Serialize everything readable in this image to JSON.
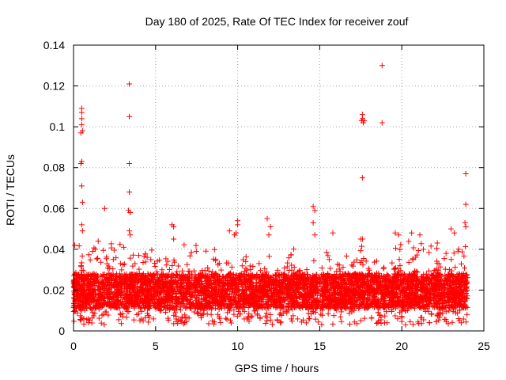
{
  "chart_data": {
    "type": "scatter",
    "title": "Day 180 of 2025, Rate Of TEC Index for receiver zouf",
    "xlabel": "GPS time / hours",
    "ylabel": "ROTI / TECUs",
    "xlim": [
      0,
      25
    ],
    "ylim": [
      0,
      0.14
    ],
    "xticks": [
      0,
      5,
      10,
      15,
      20,
      25
    ],
    "xtick_labels": [
      "0",
      "5",
      "10",
      "15",
      "20",
      "25"
    ],
    "yticks": [
      0,
      0.02,
      0.04,
      0.06,
      0.08,
      0.1,
      0.12,
      0.14
    ],
    "ytick_labels": [
      "0",
      "0.02",
      "0.04",
      "0.06",
      "0.08",
      "0.1",
      "0.12",
      "0.14"
    ],
    "grid": true,
    "marker": "+",
    "color": "#ff0000",
    "bulk_band": {
      "x_range": [
        0,
        24
      ],
      "typical_y": [
        0.008,
        0.028
      ],
      "note": "dense cloud of thousands of ROTI samples across 0–24 h"
    },
    "series": [
      {
        "name": "ROTI",
        "points": [
          [
            0.5,
            0.109
          ],
          [
            0.5,
            0.107
          ],
          [
            0.5,
            0.104
          ],
          [
            0.5,
            0.101
          ],
          [
            0.45,
            0.097
          ],
          [
            0.55,
            0.098
          ],
          [
            0.5,
            0.083
          ],
          [
            0.45,
            0.082
          ],
          [
            0.5,
            0.071
          ],
          [
            0.55,
            0.063
          ],
          [
            0.5,
            0.052
          ],
          [
            0.55,
            0.049
          ],
          [
            1.9,
            0.06
          ],
          [
            3.4,
            0.121
          ],
          [
            3.4,
            0.105
          ],
          [
            3.4,
            0.082
          ],
          [
            3.4,
            0.068
          ],
          [
            3.35,
            0.059
          ],
          [
            3.45,
            0.058
          ],
          [
            3.4,
            0.049
          ],
          [
            3.45,
            0.047
          ],
          [
            6.0,
            0.052
          ],
          [
            6.1,
            0.051
          ],
          [
            6.1,
            0.045
          ],
          [
            9.5,
            0.049
          ],
          [
            9.8,
            0.047
          ],
          [
            10.0,
            0.054
          ],
          [
            10.0,
            0.052
          ],
          [
            9.9,
            0.048
          ],
          [
            11.8,
            0.055
          ],
          [
            12.0,
            0.051
          ],
          [
            11.9,
            0.047
          ],
          [
            14.6,
            0.061
          ],
          [
            14.7,
            0.059
          ],
          [
            14.6,
            0.053
          ],
          [
            14.7,
            0.047
          ],
          [
            15.8,
            0.048
          ],
          [
            17.6,
            0.106
          ],
          [
            17.6,
            0.104
          ],
          [
            17.65,
            0.102
          ],
          [
            17.7,
            0.103
          ],
          [
            17.55,
            0.103
          ],
          [
            17.6,
            0.075
          ],
          [
            17.5,
            0.045
          ],
          [
            17.6,
            0.045
          ],
          [
            18.8,
            0.13
          ],
          [
            18.8,
            0.102
          ],
          [
            19.6,
            0.048
          ],
          [
            19.8,
            0.047
          ],
          [
            20.6,
            0.048
          ],
          [
            21.1,
            0.047
          ],
          [
            23.0,
            0.05
          ],
          [
            23.2,
            0.048
          ],
          [
            23.9,
            0.077
          ],
          [
            23.9,
            0.062
          ],
          [
            23.85,
            0.053
          ],
          [
            23.9,
            0.051
          ]
        ]
      }
    ]
  }
}
